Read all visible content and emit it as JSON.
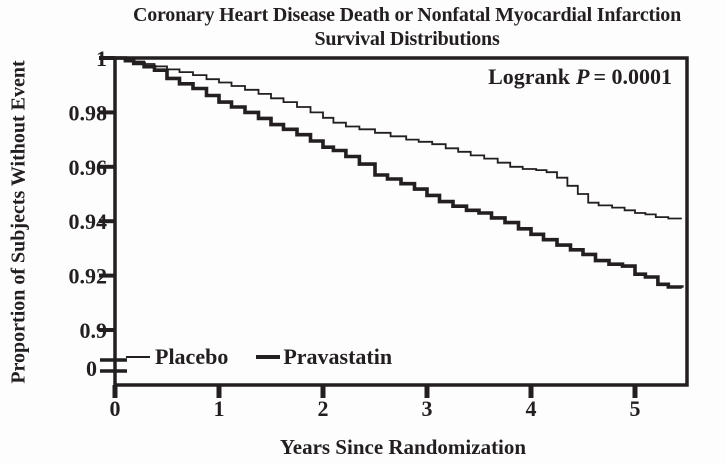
{
  "chart_data": {
    "type": "line",
    "subtype": "kaplan-meier-step-survival",
    "title_line1": "Coronary Heart Disease Death or Nonfatal Myocardial Infarction",
    "title_line2": "Survival Distributions",
    "xlabel": "Years Since Randomization",
    "ylabel": "Proportion of Subjects Without Event",
    "annotation": {
      "prefix": "Logrank",
      "stat": "P",
      "suffix": "= 0.0001"
    },
    "p_value": "0.0001",
    "x_axis": {
      "ticks": [
        {
          "label": "0",
          "value": 0
        },
        {
          "label": "1",
          "value": 1
        },
        {
          "label": "2",
          "value": 2
        },
        {
          "label": "3",
          "value": 3
        },
        {
          "label": "4",
          "value": 4
        },
        {
          "label": "5",
          "value": 5
        }
      ],
      "range": [
        0,
        5.5
      ]
    },
    "y_axis": {
      "ticks": [
        {
          "label": "1",
          "value": 1.0
        },
        {
          "label": "0.98",
          "value": 0.98
        },
        {
          "label": "0.96",
          "value": 0.96
        },
        {
          "label": "0.94",
          "value": 0.94
        },
        {
          "label": "0.92",
          "value": 0.92
        },
        {
          "label": "0.9",
          "value": 0.9
        },
        {
          "label": "0",
          "value": 0,
          "below_break": true
        }
      ],
      "display_range": [
        0.9,
        1.0
      ],
      "axis_break": true
    },
    "grid": false,
    "legend": [
      {
        "name": "Placebo",
        "style": "thin"
      },
      {
        "name": "Pravastatin",
        "style": "thick"
      }
    ],
    "colors": {
      "line": "#231f20",
      "background": "#ffffff"
    },
    "series": [
      {
        "name": "Placebo",
        "style": "thin",
        "points": [
          [
            0,
            1.0
          ],
          [
            0.1,
            0.9993
          ],
          [
            0.18,
            0.9987
          ],
          [
            0.28,
            0.9978
          ],
          [
            0.38,
            0.9969
          ],
          [
            0.5,
            0.9958
          ],
          [
            0.62,
            0.9948
          ],
          [
            0.75,
            0.9937
          ],
          [
            0.88,
            0.9922
          ],
          [
            1.0,
            0.991
          ],
          [
            1.12,
            0.9897
          ],
          [
            1.25,
            0.9883
          ],
          [
            1.38,
            0.9868
          ],
          [
            1.5,
            0.9852
          ],
          [
            1.62,
            0.9838
          ],
          [
            1.75,
            0.982
          ],
          [
            1.88,
            0.98
          ],
          [
            2.0,
            0.978
          ],
          [
            2.1,
            0.9762
          ],
          [
            2.22,
            0.9748
          ],
          [
            2.35,
            0.9738
          ],
          [
            2.5,
            0.9725
          ],
          [
            2.65,
            0.9712
          ],
          [
            2.8,
            0.97
          ],
          [
            2.92,
            0.9692
          ],
          [
            3.05,
            0.9683
          ],
          [
            3.18,
            0.9668
          ],
          [
            3.3,
            0.9655
          ],
          [
            3.42,
            0.9642
          ],
          [
            3.55,
            0.963
          ],
          [
            3.68,
            0.9615
          ],
          [
            3.8,
            0.96
          ],
          [
            3.92,
            0.9592
          ],
          [
            4.05,
            0.9588
          ],
          [
            4.15,
            0.958
          ],
          [
            4.25,
            0.956
          ],
          [
            4.35,
            0.953
          ],
          [
            4.45,
            0.95
          ],
          [
            4.55,
            0.9468
          ],
          [
            4.65,
            0.9458
          ],
          [
            4.78,
            0.945
          ],
          [
            4.9,
            0.944
          ],
          [
            5.0,
            0.943
          ],
          [
            5.1,
            0.9425
          ],
          [
            5.2,
            0.9415
          ],
          [
            5.32,
            0.941
          ],
          [
            5.45,
            0.941
          ]
        ]
      },
      {
        "name": "Pravastatin",
        "style": "thick",
        "points": [
          [
            0,
            1.0
          ],
          [
            0.1,
            0.999
          ],
          [
            0.18,
            0.998
          ],
          [
            0.28,
            0.9968
          ],
          [
            0.38,
            0.9955
          ],
          [
            0.5,
            0.9925
          ],
          [
            0.62,
            0.9905
          ],
          [
            0.75,
            0.9888
          ],
          [
            0.88,
            0.9862
          ],
          [
            1.0,
            0.9838
          ],
          [
            1.12,
            0.982
          ],
          [
            1.25,
            0.98
          ],
          [
            1.38,
            0.9778
          ],
          [
            1.5,
            0.9755
          ],
          [
            1.62,
            0.9738
          ],
          [
            1.75,
            0.9718
          ],
          [
            1.88,
            0.9695
          ],
          [
            2.0,
            0.9672
          ],
          [
            2.1,
            0.966
          ],
          [
            2.22,
            0.9638
          ],
          [
            2.35,
            0.961
          ],
          [
            2.5,
            0.957
          ],
          [
            2.62,
            0.9555
          ],
          [
            2.75,
            0.9538
          ],
          [
            2.88,
            0.9518
          ],
          [
            3.0,
            0.9495
          ],
          [
            3.12,
            0.9472
          ],
          [
            3.25,
            0.9455
          ],
          [
            3.38,
            0.944
          ],
          [
            3.5,
            0.943
          ],
          [
            3.62,
            0.9412
          ],
          [
            3.75,
            0.9395
          ],
          [
            3.88,
            0.9372
          ],
          [
            4.0,
            0.9352
          ],
          [
            4.12,
            0.9332
          ],
          [
            4.25,
            0.9312
          ],
          [
            4.38,
            0.9295
          ],
          [
            4.5,
            0.9278
          ],
          [
            4.62,
            0.9255
          ],
          [
            4.75,
            0.9242
          ],
          [
            4.88,
            0.9235
          ],
          [
            5.0,
            0.9205
          ],
          [
            5.1,
            0.9195
          ],
          [
            5.22,
            0.9168
          ],
          [
            5.32,
            0.9158
          ],
          [
            5.45,
            0.9155
          ]
        ]
      }
    ]
  }
}
